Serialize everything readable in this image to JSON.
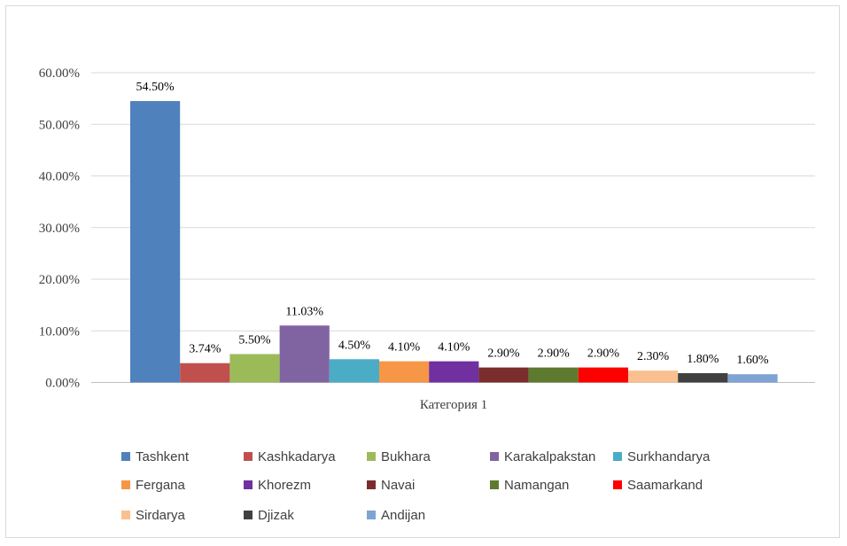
{
  "chart_data": {
    "type": "bar",
    "title": "",
    "xlabel": "",
    "ylabel": "",
    "categories": [
      "Категория 1"
    ],
    "ylim": [
      0,
      0.6
    ],
    "yticks": [
      "0.00%",
      "10.00%",
      "20.00%",
      "30.00%",
      "40.00%",
      "50.00%",
      "60.00%"
    ],
    "grid": true,
    "legend_position": "bottom",
    "series": [
      {
        "name": "Tashkent",
        "value": 0.545,
        "label": "54.50%",
        "color": "#4f81bd"
      },
      {
        "name": "Kashkadarya",
        "value": 0.0374,
        "label": "3.74%",
        "color": "#c0504d"
      },
      {
        "name": "Bukhara",
        "value": 0.055,
        "label": "5.50%",
        "color": "#9bbb59"
      },
      {
        "name": "Karakalpakstan",
        "value": 0.1103,
        "label": "11.03%",
        "color": "#8064a2"
      },
      {
        "name": "Surkhandarya",
        "value": 0.045,
        "label": "4.50%",
        "color": "#4bacc6"
      },
      {
        "name": "Fergana",
        "value": 0.041,
        "label": "4.10%",
        "color": "#f79646"
      },
      {
        "name": "Khorezm",
        "value": 0.041,
        "label": "4.10%",
        "color": "#7030a0"
      },
      {
        "name": "Navai",
        "value": 0.029,
        "label": "2.90%",
        "color": "#7b2c2c"
      },
      {
        "name": "Namangan",
        "value": 0.029,
        "label": "2.90%",
        "color": "#5e7a2e"
      },
      {
        "name": "Saamarkand",
        "value": 0.029,
        "label": "2.90%",
        "color": "#ff0000"
      },
      {
        "name": "Sirdarya",
        "value": 0.023,
        "label": "2.30%",
        "color": "#fac090"
      },
      {
        "name": "Djizak",
        "value": 0.018,
        "label": "1.80%",
        "color": "#404040"
      },
      {
        "name": "Andijan",
        "value": 0.016,
        "label": "1.60%",
        "color": "#7fa3d3"
      }
    ]
  }
}
